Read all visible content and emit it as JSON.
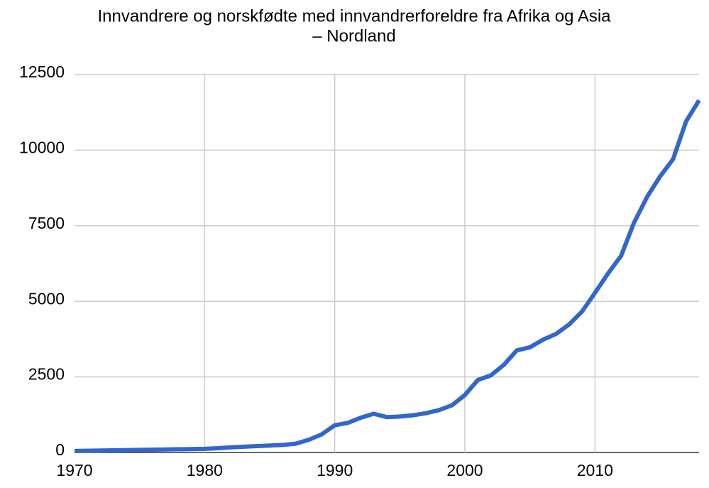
{
  "chart_data": {
    "type": "line",
    "title": [
      "Innvandrere og norskfødte med innvandrerforeldre fra Afrika og Asia",
      "– Nordland"
    ],
    "x": [
      1970,
      1975,
      1980,
      1981,
      1982,
      1983,
      1984,
      1985,
      1986,
      1987,
      1988,
      1989,
      1990,
      1991,
      1992,
      1993,
      1994,
      1995,
      1996,
      1997,
      1998,
      1999,
      2000,
      2001,
      2002,
      2003,
      2004,
      2005,
      2006,
      2007,
      2008,
      2009,
      2010,
      2011,
      2012,
      2013,
      2014,
      2015,
      2016,
      2017,
      2018
    ],
    "series": [
      {
        "color": "#3366cc",
        "values": [
          50,
          85,
          120,
          140,
          170,
          190,
          210,
          230,
          250,
          290,
          420,
          600,
          900,
          980,
          1150,
          1280,
          1170,
          1190,
          1230,
          1300,
          1400,
          1560,
          1900,
          2400,
          2550,
          2900,
          3380,
          3480,
          3730,
          3920,
          4230,
          4660,
          5280,
          5920,
          6500,
          7600,
          8450,
          9130,
          9700,
          10950,
          11650
        ]
      }
    ],
    "xlim": [
      1970,
      2018
    ],
    "xticks": [
      1970,
      1980,
      1990,
      2000,
      2010
    ],
    "ylim": [
      0,
      12500
    ],
    "yticks": [
      0,
      2500,
      5000,
      7500,
      10000,
      12500
    ],
    "grid": true
  }
}
